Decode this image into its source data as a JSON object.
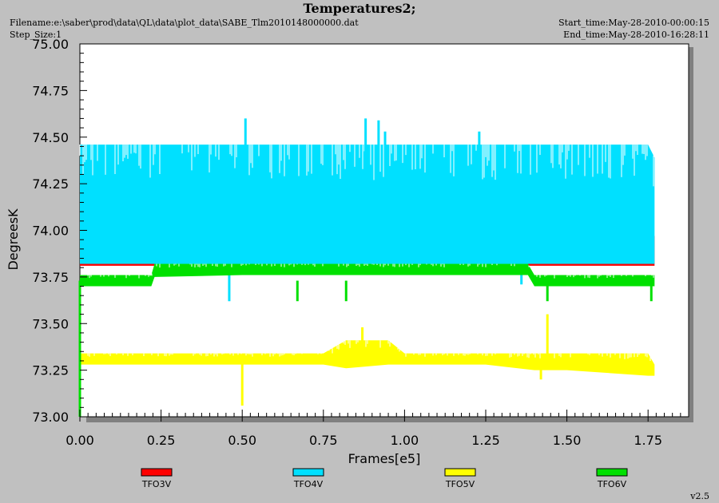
{
  "header": {
    "title": "Temperatures2;",
    "filename": "Filename:e:\\saber\\prod\\data\\QL\\data\\plot_data\\SABE_Tlm2010148000000.dat",
    "step_size": "Step_Size:1",
    "start_time": "Start_time:May-28-2010-00:00:15",
    "end_time": "End_time:May-28-2010-16:28:11"
  },
  "footer": {
    "version": "v2.5"
  },
  "chart_data": {
    "type": "line",
    "title": "Temperatures2;",
    "xlabel": "Frames[e5]",
    "ylabel": "DegreesK",
    "xlim": [
      0.0,
      1.875
    ],
    "ylim": [
      73.0,
      75.0
    ],
    "x_ticks": [
      "0.00",
      "0.25",
      "0.50",
      "0.75",
      "1.00",
      "1.25",
      "1.50",
      "1.75"
    ],
    "y_ticks": [
      "73.00",
      "73.25",
      "73.50",
      "73.75",
      "74.00",
      "74.25",
      "74.50",
      "74.75",
      "75.00"
    ],
    "x_tick_values": [
      0.0,
      0.25,
      0.5,
      0.75,
      1.0,
      1.25,
      1.5,
      1.75
    ],
    "y_tick_values": [
      73.0,
      73.25,
      73.5,
      73.75,
      74.0,
      74.25,
      74.5,
      74.75,
      75.0
    ],
    "grid": false,
    "legend_position": "bottom",
    "series": [
      {
        "name": "TFO3V",
        "color": "#ff0000",
        "x": [
          0.0,
          0.05,
          0.25,
          0.5,
          0.75,
          0.9,
          1.0,
          1.25,
          1.5,
          1.77
        ],
        "low": [
          73.81,
          73.81,
          73.81,
          73.81,
          73.81,
          73.81,
          73.81,
          73.81,
          73.81,
          73.81
        ],
        "high": [
          73.88,
          73.97,
          73.88,
          73.88,
          73.97,
          73.97,
          73.97,
          73.88,
          73.88,
          73.97
        ],
        "spikes": [
          [
            0.05,
            73.97
          ],
          [
            0.38,
            73.93
          ],
          [
            0.74,
            73.97
          ],
          [
            0.89,
            73.97
          ],
          [
            0.95,
            74.03
          ],
          [
            1.16,
            73.97
          ],
          [
            1.33,
            73.97
          ],
          [
            1.66,
            73.95
          ]
        ]
      },
      {
        "name": "TFO4V",
        "color": "#00e0ff",
        "x": [
          0.0,
          0.25,
          0.5,
          0.75,
          1.0,
          1.25,
          1.5,
          1.75,
          1.77
        ],
        "low": [
          73.82,
          73.82,
          73.82,
          73.82,
          73.82,
          73.82,
          73.82,
          73.82,
          73.82
        ],
        "high": [
          74.46,
          74.46,
          74.46,
          74.46,
          74.46,
          74.46,
          74.46,
          74.46,
          74.39
        ],
        "spikes": [
          [
            0.51,
            74.6
          ],
          [
            0.88,
            74.6
          ],
          [
            0.92,
            74.59
          ],
          [
            0.94,
            74.53
          ],
          [
            1.23,
            74.53
          ],
          [
            1.36,
            73.71
          ],
          [
            0.46,
            73.62
          ]
        ]
      },
      {
        "name": "TFO5V",
        "color": "#ffff00",
        "x": [
          0.0,
          0.25,
          0.5,
          0.75,
          0.82,
          0.95,
          1.0,
          1.25,
          1.4,
          1.5,
          1.75,
          1.77
        ],
        "low": [
          73.28,
          73.28,
          73.28,
          73.28,
          73.26,
          73.28,
          73.28,
          73.28,
          73.25,
          73.25,
          73.22,
          73.22
        ],
        "high": [
          73.34,
          73.34,
          73.34,
          73.34,
          73.41,
          73.41,
          73.34,
          73.34,
          73.34,
          73.34,
          73.34,
          73.28
        ],
        "spikes": [
          [
            0.5,
            73.06
          ],
          [
            0.87,
            73.48
          ],
          [
            1.44,
            73.55
          ],
          [
            1.42,
            73.2
          ]
        ]
      },
      {
        "name": "TFO6V",
        "color": "#00e000",
        "x": [
          0.0,
          0.22,
          0.23,
          0.5,
          0.75,
          1.0,
          1.25,
          1.38,
          1.4,
          1.5,
          1.75,
          1.77
        ],
        "low": [
          73.7,
          73.7,
          73.75,
          73.76,
          73.76,
          73.76,
          73.76,
          73.76,
          73.7,
          73.7,
          73.7,
          73.7
        ],
        "high": [
          73.76,
          73.76,
          73.82,
          73.82,
          73.82,
          73.82,
          73.82,
          73.82,
          73.76,
          73.76,
          73.76,
          73.76
        ],
        "spikes": [
          [
            0.67,
            73.62
          ],
          [
            0.82,
            73.62
          ],
          [
            1.44,
            73.62
          ],
          [
            1.76,
            73.62
          ],
          [
            0.0,
            73.0
          ]
        ]
      }
    ]
  }
}
